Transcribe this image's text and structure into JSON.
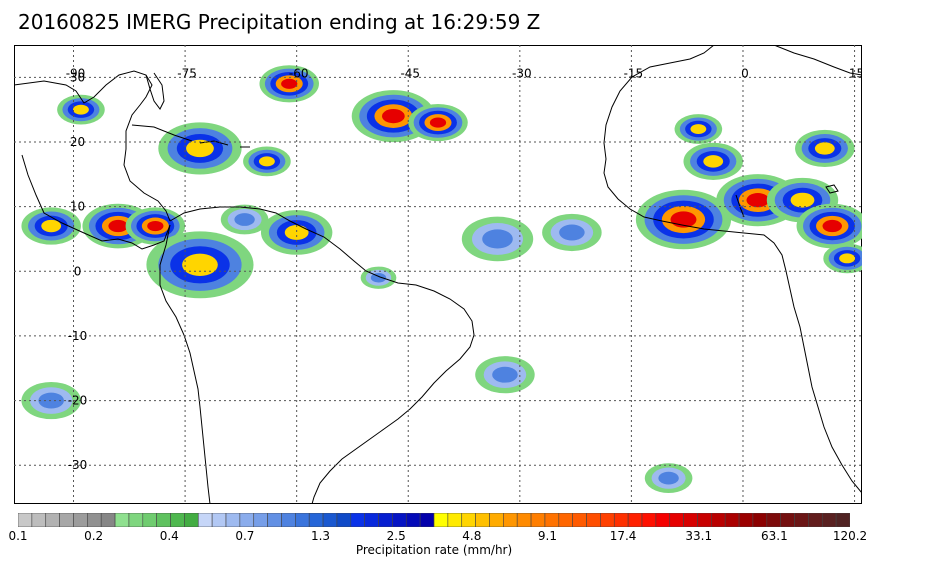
{
  "title": "20160825 IMERG Precipitation ending at 16:29:59 Z",
  "map": {
    "lon_range": [
      -98,
      16
    ],
    "lat_range": [
      -36,
      35
    ],
    "lon_gridlines": [
      -90,
      -75,
      -60,
      -45,
      -30,
      -15,
      0,
      15
    ],
    "lat_gridlines": [
      30,
      20,
      10,
      0,
      -10,
      -20,
      -30
    ],
    "lon_labels": [
      {
        "lon": -90,
        "text": "-90"
      },
      {
        "lon": -75,
        "text": "-75"
      },
      {
        "lon": -60,
        "text": "-60"
      },
      {
        "lon": -45,
        "text": "-45"
      },
      {
        "lon": -30,
        "text": "-30"
      },
      {
        "lon": -15,
        "text": "-15"
      },
      {
        "lon": 0,
        "text": "0"
      },
      {
        "lon": 15,
        "text": "15"
      }
    ],
    "lat_labels": [
      {
        "lat": 30,
        "text": "30"
      },
      {
        "lat": 20,
        "text": "20"
      },
      {
        "lat": 10,
        "text": "10"
      },
      {
        "lat": 0,
        "text": "0"
      },
      {
        "lat": -10,
        "text": "-10"
      },
      {
        "lat": -20,
        "text": "-20"
      },
      {
        "lat": -30,
        "text": "-30"
      }
    ],
    "gridlines": "dotted"
  },
  "colorbar": {
    "label": "Precipitation rate (mm/hr)",
    "tick_labels": [
      "0.1",
      "0.2",
      "0.4",
      "0.7",
      "1.3",
      "2.5",
      "4.8",
      "9.1",
      "17.4",
      "33.1",
      "63.1",
      "120.2"
    ],
    "colors": [
      "#c8c8c8",
      "#bdbdbd",
      "#b2b2b2",
      "#a7a7a7",
      "#9c9c9c",
      "#919191",
      "#868686",
      "#8fe08f",
      "#7fd67f",
      "#6fcc6f",
      "#5fc25f",
      "#4fb84f",
      "#43ad43",
      "#c6d6f8",
      "#b2c8f4",
      "#9ebaf0",
      "#8aacec",
      "#769ee8",
      "#6290e4",
      "#4e82e0",
      "#3a74dc",
      "#2666d8",
      "#1a58d0",
      "#0f4ac8",
      "#0a32e8",
      "#0828dc",
      "#061ed0",
      "#0514c4",
      "#040ab8",
      "#0300ac",
      "#ffff00",
      "#ffea00",
      "#ffd500",
      "#ffc000",
      "#ffab00",
      "#ff9600",
      "#ff8a00",
      "#ff7e00",
      "#ff7200",
      "#ff6600",
      "#ff5a00",
      "#ff4e00",
      "#ff4000",
      "#ff3000",
      "#ff2000",
      "#ff1000",
      "#f50000",
      "#e60000",
      "#d70000",
      "#c80000",
      "#b90000",
      "#aa0000",
      "#9b0000",
      "#8c0000",
      "#7d0a0a",
      "#741010",
      "#6b1616",
      "#621c1c",
      "#592020",
      "#502222"
    ]
  },
  "precip_cells": [
    {
      "lon": -61,
      "lat": 29,
      "r": 2.5,
      "level": "heavy"
    },
    {
      "lon": -47,
      "lat": 24,
      "r": 3.5,
      "level": "heavy"
    },
    {
      "lon": -41,
      "lat": 23,
      "r": 2.5,
      "level": "heavy"
    },
    {
      "lon": -89,
      "lat": 25,
      "r": 2.0,
      "level": "moderate"
    },
    {
      "lon": -73,
      "lat": 19,
      "r": 3.5,
      "level": "moderate"
    },
    {
      "lon": -64,
      "lat": 17,
      "r": 2.0,
      "level": "moderate"
    },
    {
      "lon": -84,
      "lat": 7,
      "r": 3.0,
      "level": "heavy"
    },
    {
      "lon": -79,
      "lat": 7,
      "r": 2.5,
      "level": "heavy"
    },
    {
      "lon": -93,
      "lat": 7,
      "r": 2.5,
      "level": "moderate"
    },
    {
      "lon": -73,
      "lat": 1,
      "r": 4.5,
      "level": "moderate"
    },
    {
      "lon": -60,
      "lat": 6,
      "r": 3.0,
      "level": "moderate"
    },
    {
      "lon": -67,
      "lat": 8,
      "r": 2.0,
      "level": "light"
    },
    {
      "lon": -49,
      "lat": -1,
      "r": 1.5,
      "level": "light"
    },
    {
      "lon": -33,
      "lat": 5,
      "r": 3.0,
      "level": "light"
    },
    {
      "lon": -23,
      "lat": 6,
      "r": 2.5,
      "level": "light"
    },
    {
      "lon": -8,
      "lat": 8,
      "r": 4.0,
      "level": "heavy"
    },
    {
      "lon": -4,
      "lat": 17,
      "r": 2.5,
      "level": "moderate"
    },
    {
      "lon": 2,
      "lat": 11,
      "r": 3.5,
      "level": "heavy"
    },
    {
      "lon": 8,
      "lat": 11,
      "r": 3.0,
      "level": "moderate"
    },
    {
      "lon": 12,
      "lat": 7,
      "r": 3.0,
      "level": "heavy"
    },
    {
      "lon": 14,
      "lat": 2,
      "r": 2.0,
      "level": "moderate"
    },
    {
      "lon": 11,
      "lat": 19,
      "r": 2.5,
      "level": "moderate"
    },
    {
      "lon": -6,
      "lat": 22,
      "r": 2.0,
      "level": "moderate"
    },
    {
      "lon": -32,
      "lat": -16,
      "r": 2.5,
      "level": "light"
    },
    {
      "lon": -93,
      "lat": -20,
      "r": 2.5,
      "level": "light"
    },
    {
      "lon": -10,
      "lat": -32,
      "r": 2.0,
      "level": "light"
    }
  ]
}
